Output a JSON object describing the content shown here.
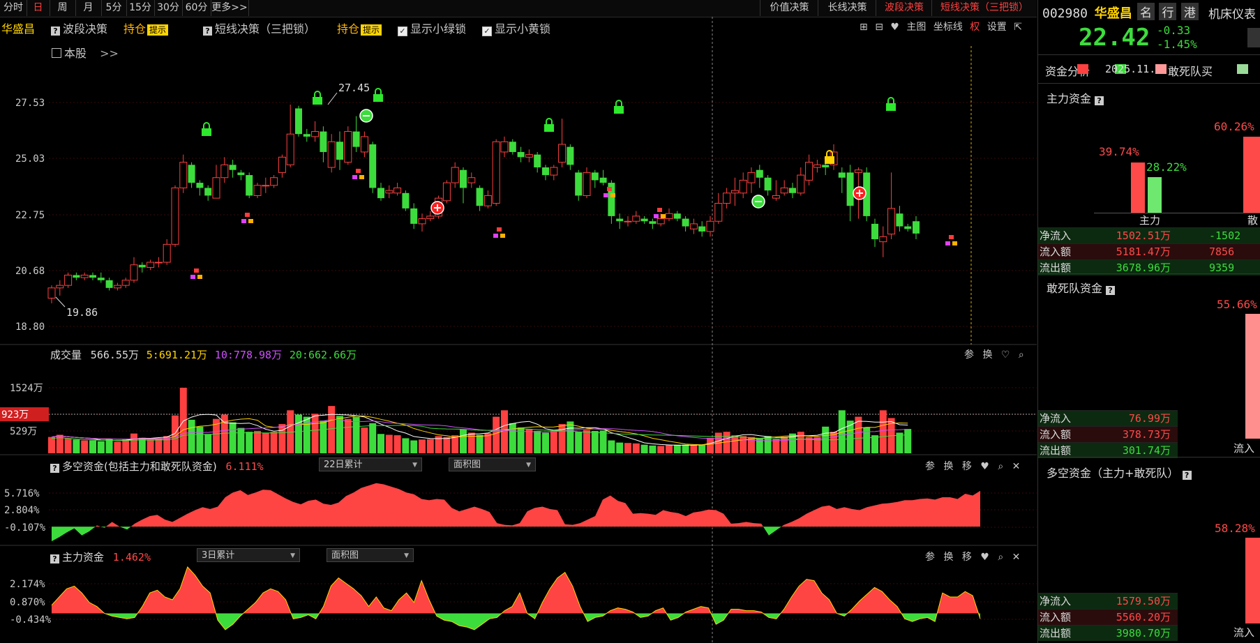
{
  "toolbar": {
    "periods": [
      "分时",
      "日",
      "周",
      "月",
      "5分",
      "15分",
      "30分",
      "60分",
      "更多>>"
    ],
    "active_period": "日",
    "strategies": [
      "价值决策",
      "长线决策",
      "波段决策",
      "短线决策（三把锁）"
    ]
  },
  "main_header": {
    "stock_name": "华盛昌",
    "wave_label": "波段决策",
    "hold_label": "持仓",
    "tip_label": "提示",
    "short_label": "短线决策（三把锁）",
    "hold_label2": "持仓",
    "tip_label2": "提示",
    "show_green": "显示小绿锁",
    "show_yellow": "显示小黄锁",
    "this_stock": "本股",
    "more": ">>",
    "right_tools": [
      "主图",
      "坐标线",
      "权",
      "设置"
    ]
  },
  "price_chart": {
    "y_ticks": [
      "27.53",
      "25.03",
      "22.75",
      "20.68",
      "18.80"
    ],
    "y_values": [
      27.53,
      25.03,
      22.75,
      20.68,
      18.8
    ],
    "high_label": "27.45",
    "low_label": "19.86",
    "candles": [
      [
        19.9,
        20.3,
        19.7,
        20.4
      ],
      [
        20.3,
        20.4,
        20.0,
        20.6
      ],
      [
        20.4,
        20.8,
        20.3,
        20.9
      ],
      [
        20.8,
        20.7,
        20.6,
        20.9
      ],
      [
        20.7,
        20.8,
        20.6,
        20.9
      ],
      [
        20.8,
        20.7,
        20.6,
        20.9
      ],
      [
        20.7,
        20.6,
        20.5,
        20.9
      ],
      [
        20.6,
        20.3,
        20.2,
        20.7
      ],
      [
        20.3,
        20.4,
        20.2,
        20.5
      ],
      [
        20.4,
        20.6,
        20.3,
        20.7
      ],
      [
        20.6,
        21.2,
        20.5,
        21.5
      ],
      [
        21.2,
        21.1,
        20.9,
        21.3
      ],
      [
        21.1,
        21.3,
        21.0,
        21.4
      ],
      [
        21.3,
        21.3,
        21.1,
        21.5
      ],
      [
        21.3,
        22.0,
        21.2,
        22.2
      ],
      [
        22.0,
        24.2,
        21.9,
        24.3
      ],
      [
        24.2,
        25.2,
        24.0,
        25.5
      ],
      [
        25.1,
        24.4,
        24.2,
        25.2
      ],
      [
        24.4,
        24.2,
        23.9,
        24.5
      ],
      [
        24.2,
        23.9,
        23.7,
        24.3
      ],
      [
        23.8,
        24.6,
        23.8,
        25.1
      ],
      [
        24.6,
        25.1,
        24.4,
        25.4
      ],
      [
        25.1,
        24.9,
        24.6,
        25.3
      ],
      [
        24.8,
        24.7,
        24.5,
        24.9
      ],
      [
        24.7,
        23.9,
        23.8,
        24.8
      ],
      [
        23.9,
        24.3,
        23.8,
        24.4
      ],
      [
        24.3,
        24.3,
        24.0,
        24.6
      ],
      [
        24.3,
        24.6,
        24.2,
        24.7
      ],
      [
        24.8,
        25.4,
        24.6,
        25.5
      ],
      [
        25.1,
        26.3,
        25.0,
        27.45
      ],
      [
        27.3,
        26.3,
        26.2,
        27.4
      ],
      [
        26.3,
        26.2,
        26.0,
        26.5
      ],
      [
        26.2,
        26.4,
        26.0,
        26.8
      ],
      [
        26.4,
        25.6,
        25.2,
        26.6
      ],
      [
        25.0,
        26.0,
        24.8,
        26.3
      ],
      [
        26.0,
        25.3,
        24.9,
        26.4
      ],
      [
        25.2,
        26.4,
        25.1,
        26.6
      ],
      [
        26.4,
        25.8,
        25.6,
        27.0
      ],
      [
        25.6,
        26.2,
        25.4,
        26.4
      ],
      [
        25.9,
        24.2,
        24.0,
        26.0
      ],
      [
        24.2,
        23.8,
        23.7,
        24.4
      ],
      [
        24.0,
        24.1,
        23.8,
        24.3
      ],
      [
        24.0,
        24.2,
        23.9,
        24.4
      ],
      [
        24.0,
        23.4,
        23.3,
        24.1
      ],
      [
        23.4,
        22.8,
        22.6,
        23.6
      ],
      [
        22.8,
        23.0,
        22.5,
        23.2
      ],
      [
        23.0,
        23.1,
        22.9,
        23.3
      ],
      [
        23.1,
        23.8,
        23.0,
        23.9
      ],
      [
        23.7,
        24.4,
        23.6,
        24.5
      ],
      [
        24.4,
        25.0,
        24.2,
        25.2
      ],
      [
        24.9,
        24.2,
        23.6,
        25.0
      ],
      [
        24.4,
        24.6,
        24.2,
        24.8
      ],
      [
        24.2,
        23.5,
        23.3,
        24.3
      ],
      [
        23.5,
        23.9,
        23.4,
        24.1
      ],
      [
        23.6,
        26.0,
        23.5,
        26.1
      ],
      [
        25.6,
        26.0,
        25.4,
        26.2
      ],
      [
        26.0,
        25.6,
        25.5,
        26.1
      ],
      [
        25.6,
        25.4,
        25.2,
        25.8
      ],
      [
        25.4,
        25.5,
        25.2,
        25.7
      ],
      [
        25.5,
        25.0,
        24.8,
        25.6
      ],
      [
        25.0,
        24.7,
        24.5,
        25.1
      ],
      [
        24.7,
        25.0,
        24.5,
        25.1
      ],
      [
        25.2,
        25.9,
        25.0,
        26.9
      ],
      [
        25.8,
        25.1,
        24.9,
        25.9
      ],
      [
        24.8,
        23.9,
        23.7,
        24.9
      ],
      [
        23.9,
        24.8,
        23.8,
        25.0
      ],
      [
        24.8,
        24.5,
        24.2,
        24.9
      ],
      [
        24.6,
        24.4,
        24.3,
        24.9
      ],
      [
        24.4,
        23.1,
        22.8,
        24.5
      ],
      [
        23.0,
        22.9,
        22.6,
        23.2
      ],
      [
        22.9,
        22.9,
        22.7,
        23.1
      ],
      [
        22.9,
        23.1,
        22.8,
        23.3
      ],
      [
        23.0,
        22.9,
        22.8,
        23.1
      ],
      [
        22.9,
        22.8,
        22.6,
        23.0
      ],
      [
        22.8,
        23.0,
        22.7,
        23.2
      ],
      [
        23.0,
        23.2,
        22.9,
        23.4
      ],
      [
        23.2,
        23.0,
        22.9,
        23.3
      ],
      [
        23.0,
        22.7,
        22.5,
        23.1
      ],
      [
        22.6,
        22.8,
        22.4,
        23.0
      ],
      [
        22.7,
        22.5,
        22.3,
        22.9
      ],
      [
        22.5,
        22.9,
        22.3,
        23.1
      ],
      [
        22.9,
        23.6,
        22.8,
        24.0
      ],
      [
        23.6,
        24.0,
        23.4,
        24.2
      ],
      [
        24.0,
        24.1,
        23.5,
        24.6
      ],
      [
        24.0,
        24.5,
        23.8,
        24.8
      ],
      [
        24.4,
        24.8,
        24.0,
        25.0
      ],
      [
        24.9,
        24.6,
        24.2,
        25.1
      ],
      [
        24.6,
        24.1,
        23.9,
        24.7
      ],
      [
        23.8,
        23.9,
        23.7,
        24.5
      ],
      [
        24.0,
        24.2,
        23.9,
        24.5
      ],
      [
        24.2,
        24.0,
        23.8,
        24.4
      ],
      [
        24.0,
        24.7,
        23.9,
        25.0
      ],
      [
        24.5,
        25.2,
        24.3,
        25.5
      ],
      [
        25.0,
        25.1,
        24.8,
        25.3
      ],
      [
        25.1,
        25.0,
        24.7,
        25.3
      ],
      [
        25.1,
        25.6,
        24.9,
        25.9
      ],
      [
        24.8,
        24.6,
        24.0,
        25.0
      ],
      [
        24.8,
        23.5,
        22.9,
        25.1
      ],
      [
        24.8,
        24.9,
        23.0,
        25.0
      ],
      [
        24.8,
        23.1,
        22.9,
        25.0
      ],
      [
        22.8,
        22.2,
        21.9,
        23.0
      ],
      [
        22.1,
        22.3,
        21.5,
        22.7
      ],
      [
        22.4,
        23.4,
        22.2,
        24.8
      ],
      [
        23.2,
        22.7,
        22.5,
        23.5
      ],
      [
        22.7,
        22.6,
        22.5,
        22.8
      ],
      [
        22.9,
        22.42,
        22.2,
        23.1
      ]
    ]
  },
  "volume": {
    "title": "成交量",
    "val": "566.55万",
    "ma5": "5:691.21万",
    "ma10": "10:778.98万",
    "ma20": "20:662.66万",
    "y_ticks": [
      "1524万",
      "923万",
      "529万"
    ],
    "y_values": [
      1524,
      923,
      529
    ],
    "tools": [
      "参",
      "换"
    ]
  },
  "multi": {
    "title": "多空资金(包括主力和敢死队资金)",
    "val": "6.111%",
    "select1": "22日累计",
    "select2": "面积图",
    "y_ticks": [
      "5.716%",
      "2.804%",
      "-0.107%"
    ],
    "y_values": [
      5.716,
      2.804,
      -0.107
    ],
    "tools": [
      "参",
      "换",
      "移"
    ]
  },
  "main_fund": {
    "title": "主力资金",
    "val": "1.462%",
    "select1": "3日累计",
    "select2": "面积图",
    "y_ticks": [
      "2.174%",
      "0.870%",
      "-0.434%"
    ],
    "y_values": [
      2.174,
      0.87,
      -0.434
    ],
    "tools": [
      "参",
      "换",
      "移"
    ]
  },
  "right": {
    "code": "002980",
    "name": "华盛昌",
    "tabs": [
      "名",
      "行",
      "港"
    ],
    "industry": "机床仪表",
    "price": "22.42",
    "change": "-0.33",
    "change_pct": "-1.45%",
    "legend_label": "资金分析",
    "date": "2025.11.7",
    "legend2": "敢死队买",
    "main_title": "主力资金",
    "main_pct1": "39.74%",
    "main_pct2": "28.22%",
    "main_pct3": "60.26%",
    "main_axis1": "主力",
    "main_axis2": "散",
    "main_rows": [
      {
        "k": "净流入",
        "v1": "1502.51万",
        "v2": "-1502"
      },
      {
        "k": "流入额",
        "v1": "5181.47万",
        "v2": "7856"
      },
      {
        "k": "流出额",
        "v1": "3678.96万",
        "v2": "9359"
      }
    ],
    "dare_title": "敢死队资金",
    "dare_pct": "55.66%",
    "dare_rows": [
      {
        "k": "净流入",
        "v1": "76.99万"
      },
      {
        "k": "流入额",
        "v1": "378.73万"
      },
      {
        "k": "流出额",
        "v1": "301.74万"
      }
    ],
    "dare_axis": "流入",
    "multi_title": "多空资金（主力+敢死队）",
    "multi_pct": "58.28%",
    "multi_rows": [
      {
        "k": "净流入",
        "v1": "1579.50万"
      },
      {
        "k": "流入额",
        "v1": "5560.20万"
      },
      {
        "k": "流出额",
        "v1": "3980.70万"
      }
    ],
    "multi_axis": "流入"
  }
}
